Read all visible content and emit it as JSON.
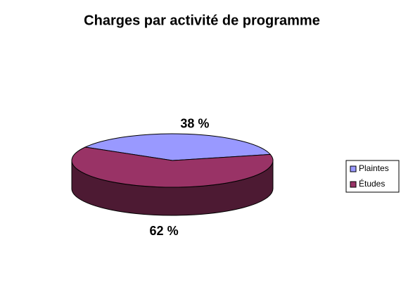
{
  "chart_data": {
    "type": "pie",
    "title": "Charges par activité de programme",
    "categories": [
      "Plaintes",
      "Études"
    ],
    "values": [
      38,
      62
    ],
    "value_labels": [
      "38 %",
      "62 %"
    ],
    "colors": [
      "#9999ff",
      "#993366"
    ],
    "legend": "right"
  }
}
